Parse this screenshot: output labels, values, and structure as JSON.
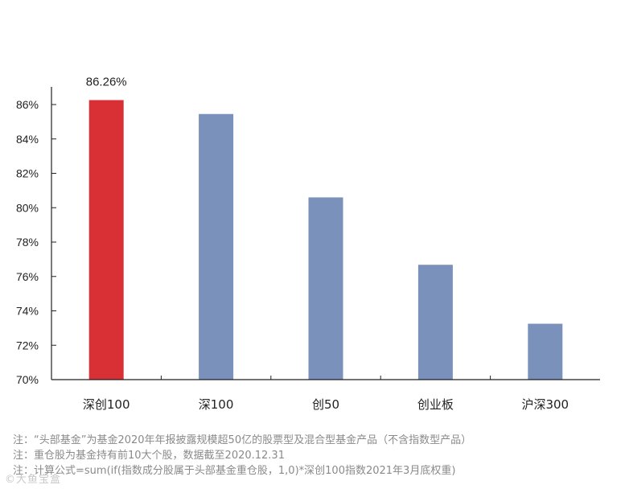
{
  "chart_data": {
    "type": "bar",
    "categories": [
      "深创100",
      "深100",
      "创50",
      "创业板",
      "沪深300"
    ],
    "values": [
      86.26,
      85.45,
      80.6,
      76.68,
      73.25
    ],
    "highlight_index": 0,
    "highlight_label": "86.26%",
    "colors": {
      "highlight": "#d93035",
      "default": "#7a91bb"
    },
    "ylim": [
      70,
      86
    ],
    "yticks": [
      70,
      72,
      74,
      76,
      78,
      80,
      82,
      84,
      86
    ],
    "ytick_labels": [
      "70%",
      "72%",
      "74%",
      "76%",
      "78%",
      "80%",
      "82%",
      "84%",
      "86%"
    ],
    "title": "",
    "xlabel": "",
    "ylabel": "",
    "grid": false,
    "legend": "none"
  },
  "notes": [
    "注：“头部基金”为基金2020年年报披露规模超50亿的股票型及混合型基金产品（不含指数型产品）",
    "注：重仓股为基金持有前10大个股，数据截至2020.12.31",
    "注：计算公式=sum(if(指数成分股属于头部基金重仓股，1,0)*深创100指数2021年3月底权重)"
  ],
  "watermark": "©大鱼宝盒"
}
